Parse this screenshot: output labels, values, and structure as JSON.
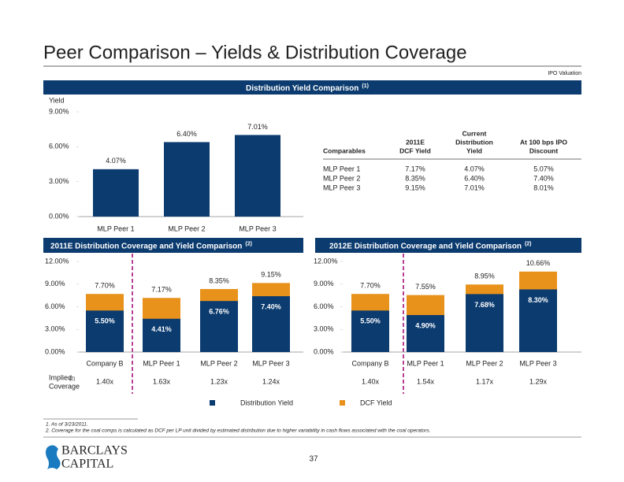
{
  "title": "Peer Comparison – Yields & Distribution Coverage",
  "tag": "IPO Valuation",
  "chart_data": [
    {
      "type": "bar",
      "title": "Distribution Yield Comparison",
      "title_note": "(1)",
      "y_label": "Yield",
      "categories": [
        "MLP Peer 1",
        "MLP Peer 2",
        "MLP Peer 3"
      ],
      "values": [
        4.07,
        6.4,
        7.01
      ],
      "value_labels": [
        "4.07%",
        "6.40%",
        "7.01%"
      ],
      "color": "#0b3b6f",
      "ylim": [
        0,
        9
      ],
      "yticks": [
        {
          "value": 0,
          "label": "0.00%"
        },
        {
          "value": 3,
          "label": "3.00%"
        },
        {
          "value": 6,
          "label": "6.00%"
        },
        {
          "value": 9,
          "label": "9.00%"
        }
      ]
    },
    {
      "type": "overlap_bar",
      "title": "2011E Distribution Coverage and Yield Comparison",
      "title_note": "(2)",
      "categories": [
        "Company B",
        "MLP Peer 1",
        "MLP Peer 2",
        "MLP Peer 3"
      ],
      "series": [
        {
          "name": "DCF Yield",
          "color": "#e8921c",
          "values": [
            7.7,
            7.17,
            8.35,
            9.15
          ],
          "value_labels": [
            "7.70%",
            "7.17%",
            "8.35%",
            "9.15%"
          ]
        },
        {
          "name": "Distribution Yield",
          "color": "#0b3b6f",
          "values": [
            5.5,
            4.41,
            6.76,
            7.4
          ],
          "value_labels": [
            "5.50%",
            "4.41%",
            "6.76%",
            "7.40%"
          ]
        }
      ],
      "coverage": [
        "1.40x",
        "1.63x",
        "1.23x",
        "1.24x"
      ],
      "ylim": [
        0,
        12
      ],
      "yticks": [
        {
          "value": 0,
          "label": "0.00%"
        },
        {
          "value": 3,
          "label": "3.00%"
        },
        {
          "value": 6,
          "label": "6.00%"
        },
        {
          "value": 9,
          "label": "9.00%"
        },
        {
          "value": 12,
          "label": "12.00%"
        }
      ]
    },
    {
      "type": "overlap_bar",
      "title": "2012E Distribution Coverage and Yield Comparison",
      "title_note": "(2)",
      "categories": [
        "Company B",
        "MLP Peer 1",
        "MLP Peer 2",
        "MLP Peer 3"
      ],
      "series": [
        {
          "name": "DCF Yield",
          "color": "#e8921c",
          "values": [
            7.7,
            7.55,
            8.95,
            10.66
          ],
          "value_labels": [
            "7.70%",
            "7.55%",
            "8.95%",
            "10.66%"
          ]
        },
        {
          "name": "Distribution Yield",
          "color": "#0b3b6f",
          "values": [
            5.5,
            4.9,
            7.68,
            8.3
          ],
          "value_labels": [
            "5.50%",
            "4.90%",
            "7.68%",
            "8.30%"
          ]
        }
      ],
      "coverage": [
        "1.40x",
        "1.54x",
        "1.17x",
        "1.29x"
      ],
      "ylim": [
        0,
        12
      ],
      "yticks": [
        {
          "value": 0,
          "label": "0.00%"
        },
        {
          "value": 3,
          "label": "3.00%"
        },
        {
          "value": 6,
          "label": "6.00%"
        },
        {
          "value": 9,
          "label": "9.00%"
        },
        {
          "value": 12,
          "label": "12.00%"
        }
      ]
    }
  ],
  "table": {
    "headers": [
      [
        "Comparables"
      ],
      [
        "2011E",
        "DCF Yield"
      ],
      [
        "Current",
        "Distribution",
        "Yield"
      ],
      [
        "At 100 bps IPO",
        "Discount"
      ]
    ],
    "rows": [
      [
        "MLP Peer 1",
        "7.17%",
        "4.07%",
        "5.07%"
      ],
      [
        "MLP Peer 2",
        "8.35%",
        "6.40%",
        "7.40%"
      ],
      [
        "MLP Peer 3",
        "9.15%",
        "7.01%",
        "8.01%"
      ]
    ]
  },
  "coverage_label": [
    "Implied",
    "Coverage"
  ],
  "coverage_note": "(2)",
  "footnotes": [
    "1.  As of 3/23/2011.",
    "2.  Coverage for the coal comps is calculated as DCF per LP unit divided by estimated distribution due to higher variability in cash flows associated with the coal operators."
  ],
  "logo": [
    "BARCLAYS",
    "CAPITAL"
  ],
  "page_number": "37"
}
